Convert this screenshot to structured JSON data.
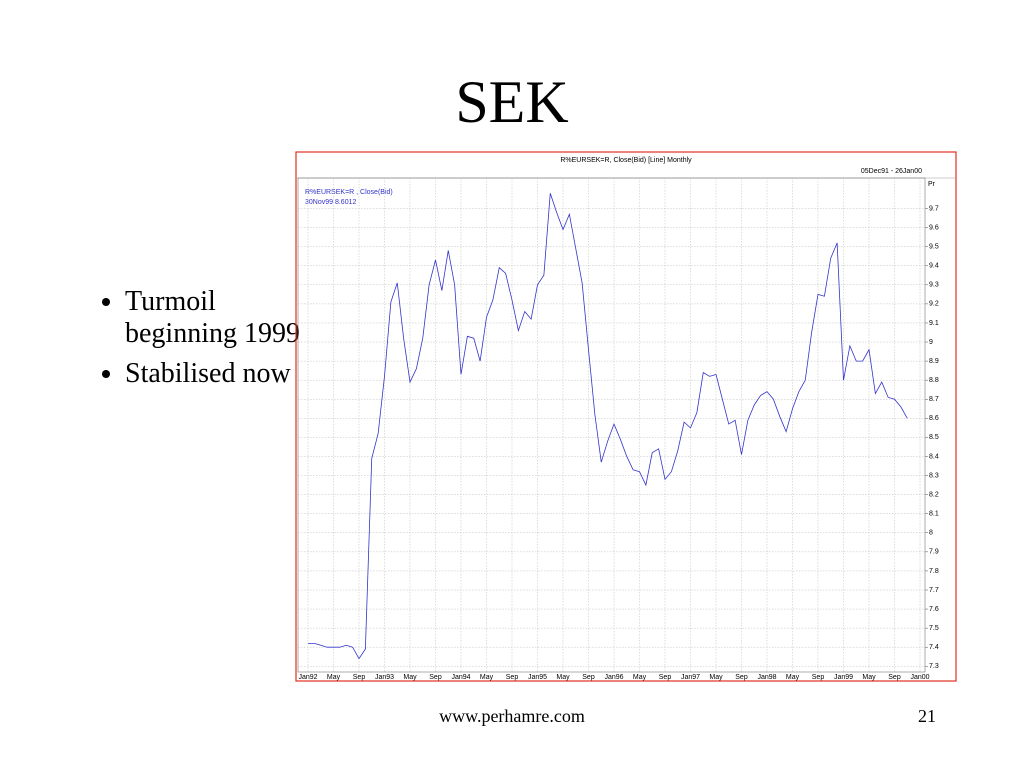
{
  "slide": {
    "title": "SEK",
    "bullets": [
      "Turmoil beginning 1999",
      "Stabilised now"
    ],
    "footer": "www.perhamre.com",
    "page_number": "21"
  },
  "chart_data": {
    "type": "line",
    "title": "R%EURSEK=R, Close(Bid) [Line] Monthly",
    "subtitle": "05Dec91 - 26Jan00",
    "y_axis_label": "Pr",
    "annotation": "30Nov99 8.6012",
    "categories": [
      "Jan92",
      null,
      null,
      null,
      "May",
      null,
      null,
      null,
      "Sep",
      null,
      null,
      null,
      "Jan93",
      null,
      null,
      null,
      "May",
      null,
      null,
      null,
      "Sep",
      null,
      null,
      null,
      "Jan94",
      null,
      null,
      null,
      "May",
      null,
      null,
      null,
      "Sep",
      null,
      null,
      null,
      "Jan95",
      null,
      null,
      null,
      "May",
      null,
      null,
      null,
      "Sep",
      null,
      null,
      null,
      "Jan96",
      null,
      null,
      null,
      "May",
      null,
      null,
      null,
      "Sep",
      null,
      null,
      null,
      "Jan97",
      null,
      null,
      null,
      "May",
      null,
      null,
      null,
      "Sep",
      null,
      null,
      null,
      "Jan98",
      null,
      null,
      null,
      "May",
      null,
      null,
      null,
      "Sep",
      null,
      null,
      null,
      "Jan99",
      null,
      null,
      null,
      "May",
      null,
      null,
      null,
      "Sep",
      null,
      null,
      null,
      "Jan00"
    ],
    "series": [
      {
        "name": "R%EURSEK=R , Close(Bid)",
        "color": "#3333cc",
        "values": [
          7.42,
          7.42,
          7.41,
          7.4,
          7.4,
          7.4,
          7.41,
          7.4,
          7.34,
          7.39,
          8.39,
          8.52,
          8.82,
          9.21,
          9.31,
          9.02,
          8.79,
          8.86,
          9.02,
          9.3,
          9.43,
          9.27,
          9.48,
          9.3,
          8.83,
          9.03,
          9.02,
          8.9,
          9.13,
          9.22,
          9.39,
          9.36,
          9.22,
          9.06,
          9.16,
          9.12,
          9.3,
          9.35,
          9.78,
          9.68,
          9.59,
          9.67,
          9.49,
          9.31,
          8.96,
          8.62,
          8.37,
          8.48,
          8.57,
          8.49,
          8.4,
          8.33,
          8.32,
          8.25,
          8.42,
          8.44,
          8.28,
          8.32,
          8.43,
          8.58,
          8.55,
          8.63,
          8.84,
          8.82,
          8.83,
          8.7,
          8.57,
          8.59,
          8.41,
          8.59,
          8.67,
          8.72,
          8.74,
          8.7,
          8.61,
          8.53,
          8.65,
          8.74,
          8.8,
          9.05,
          9.25,
          9.24,
          9.44,
          9.52,
          8.8,
          8.98,
          8.9,
          8.9,
          8.96,
          8.73,
          8.79,
          8.71,
          8.7,
          8.66,
          8.6,
          null,
          null
        ]
      }
    ],
    "ylim": [
      7.27,
      9.86
    ],
    "yticks": [
      7.3,
      7.4,
      7.5,
      7.6,
      7.7,
      7.8,
      7.9,
      8,
      8.1,
      8.2,
      8.3,
      8.4,
      8.5,
      8.6,
      8.7,
      8.8,
      8.9,
      9,
      9.1,
      9.2,
      9.3,
      9.4,
      9.5,
      9.6,
      9.7
    ],
    "grid": true,
    "border_color": "#e03020"
  }
}
